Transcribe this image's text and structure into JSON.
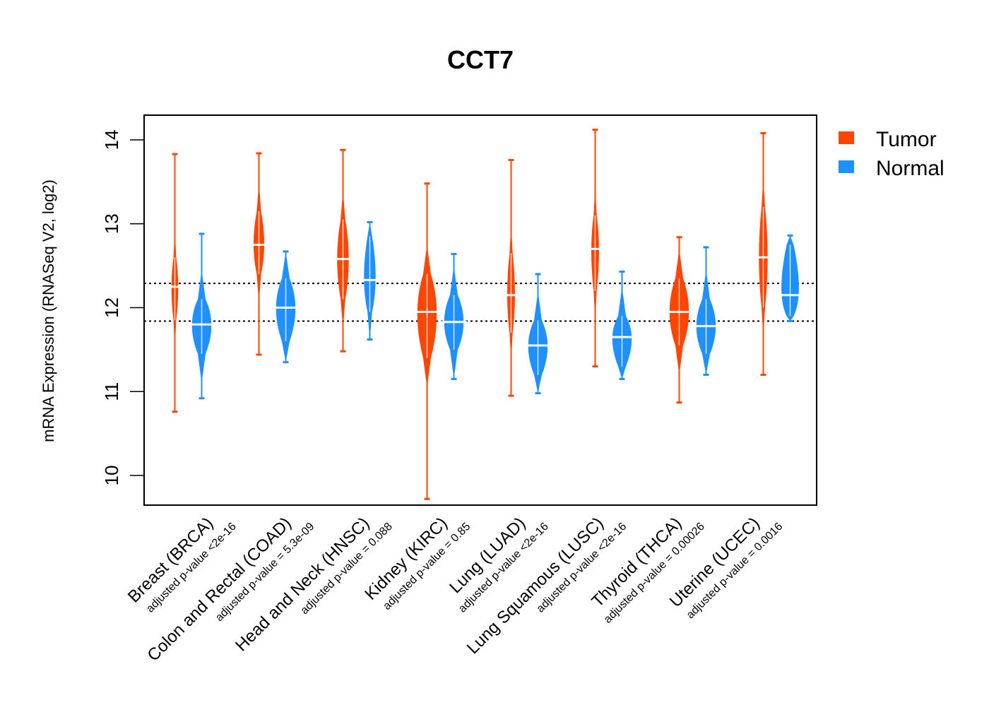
{
  "chart_data": {
    "type": "violin",
    "title": "CCT7",
    "xlabel": "",
    "ylabel": "mRNA Expression (RNASeq V2, log2)",
    "ylim": [
      9.65,
      14.3
    ],
    "yticks": [
      10,
      11,
      12,
      13,
      14
    ],
    "y_tick_labels": [
      "10",
      "11",
      "12",
      "13",
      "14"
    ],
    "reference_lines": [
      {
        "y": 12.29,
        "style": "dotted",
        "color": "#000000"
      },
      {
        "y": 11.84,
        "style": "dotted",
        "color": "#000000"
      }
    ],
    "legend": {
      "position": "top-right-outside",
      "entries": [
        {
          "label": "Tumor",
          "color": "#FF4500"
        },
        {
          "label": "Normal",
          "color": "#1E90FF"
        }
      ]
    },
    "colors": {
      "tumor": "#FF4500",
      "normal": "#1E90FF",
      "median_line": "#FFFFFF"
    },
    "grid": false,
    "categories": [
      {
        "label": "Breast (BRCA)",
        "pvalue_label": "adjusted p-value <2e-16",
        "tumor": {
          "min": 10.76,
          "max": 13.83,
          "median": 12.25,
          "body_low": 11.85,
          "body_high": 12.6,
          "width": 0.35
        },
        "normal": {
          "min": 10.92,
          "max": 12.88,
          "median": 11.8,
          "body_low": 11.45,
          "body_high": 12.1,
          "width": 1.0
        }
      },
      {
        "label": "Colon and Rectal (COAD)",
        "pvalue_label": "adjusted p-value = 5.3e-09",
        "tumor": {
          "min": 11.44,
          "max": 13.84,
          "median": 12.75,
          "body_low": 12.4,
          "body_high": 13.15,
          "width": 0.55
        },
        "normal": {
          "min": 11.35,
          "max": 12.67,
          "median": 12.0,
          "body_low": 11.6,
          "body_high": 12.35,
          "width": 1.0
        }
      },
      {
        "label": "Head and Neck (HNSC)",
        "pvalue_label": "adjusted p-value = 0.088",
        "tumor": {
          "min": 11.48,
          "max": 13.88,
          "median": 12.58,
          "body_low": 12.1,
          "body_high": 13.05,
          "width": 0.6
        },
        "normal": {
          "min": 11.62,
          "max": 13.02,
          "median": 12.33,
          "body_low": 11.95,
          "body_high": 12.85,
          "width": 0.6
        }
      },
      {
        "label": "Kidney (KIRC)",
        "pvalue_label": "adjusted p-value = 0.85",
        "tumor": {
          "min": 9.72,
          "max": 13.48,
          "median": 11.95,
          "body_low": 11.4,
          "body_high": 12.4,
          "width": 1.0
        },
        "normal": {
          "min": 11.15,
          "max": 12.64,
          "median": 11.83,
          "body_low": 11.5,
          "body_high": 12.15,
          "width": 1.0
        }
      },
      {
        "label": "Lung (LUAD)",
        "pvalue_label": "adjusted p-value <2e-16",
        "tumor": {
          "min": 10.95,
          "max": 13.76,
          "median": 12.15,
          "body_low": 11.7,
          "body_high": 12.65,
          "width": 0.4
        },
        "normal": {
          "min": 10.98,
          "max": 12.4,
          "median": 11.55,
          "body_low": 11.2,
          "body_high": 11.85,
          "width": 1.0
        }
      },
      {
        "label": "Lung Squamous (LUSC)",
        "pvalue_label": "adjusted p-value <2e-16",
        "tumor": {
          "min": 11.3,
          "max": 14.12,
          "median": 12.7,
          "body_low": 12.2,
          "body_high": 13.1,
          "width": 0.4
        },
        "normal": {
          "min": 11.15,
          "max": 12.43,
          "median": 11.65,
          "body_low": 11.3,
          "body_high": 11.9,
          "width": 1.0
        }
      },
      {
        "label": "Thyroid (THCA)",
        "pvalue_label": "adjusted p-value = 0.00026",
        "tumor": {
          "min": 10.87,
          "max": 12.84,
          "median": 11.95,
          "body_low": 11.55,
          "body_high": 12.35,
          "width": 1.0
        },
        "normal": {
          "min": 11.2,
          "max": 12.72,
          "median": 11.78,
          "body_low": 11.45,
          "body_high": 12.1,
          "width": 1.0
        }
      },
      {
        "label": "Uterine (UCEC)",
        "pvalue_label": "adjusted p-value = 0.0016",
        "tumor": {
          "min": 11.2,
          "max": 14.08,
          "median": 12.6,
          "body_low": 12.0,
          "body_high": 13.2,
          "width": 0.45
        },
        "normal": {
          "min": 11.84,
          "max": 12.86,
          "median": 12.15,
          "body_low": 11.9,
          "body_high": 12.75,
          "width": 0.9
        }
      }
    ]
  }
}
